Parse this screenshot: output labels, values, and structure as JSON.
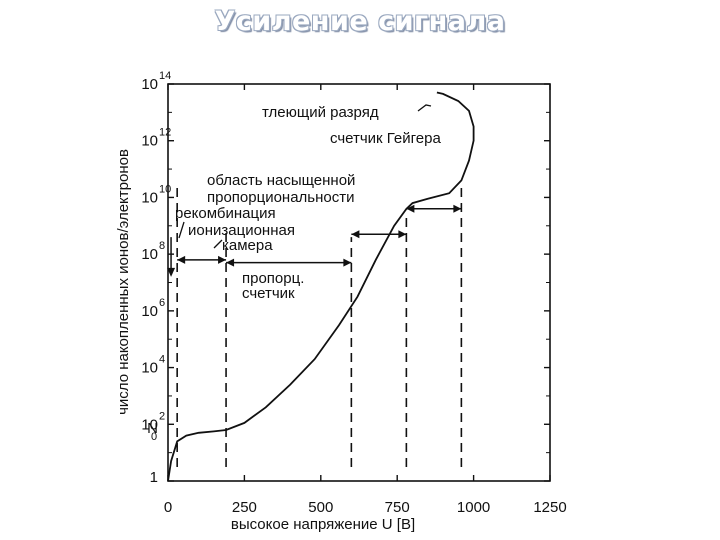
{
  "slide": {
    "title": "Усиление сигнала"
  },
  "chart_data": {
    "type": "line",
    "title": "",
    "xlabel": "высокое напряжение U [В]",
    "ylabel": "число накопленных ионов/электронов",
    "x_ticks": [
      "0",
      "250",
      "500",
      "750",
      "1000",
      "1250"
    ],
    "y_ticks": [
      {
        "base": "1",
        "exp": ""
      },
      {
        "base": "N",
        "sub": "0"
      },
      {
        "base": "10",
        "exp": "2"
      },
      {
        "base": "10",
        "exp": "4"
      },
      {
        "base": "10",
        "exp": "6"
      },
      {
        "base": "10",
        "exp": "8"
      },
      {
        "base": "10",
        "exp": "10"
      },
      {
        "base": "10",
        "exp": "12"
      },
      {
        "base": "10",
        "exp": "14"
      }
    ],
    "xlim": [
      0,
      1250
    ],
    "ylim_log10": [
      0,
      14
    ],
    "y_scale": "log",
    "series": [
      {
        "x": [
          0,
          10,
          30,
          60,
          100,
          150,
          190,
          250,
          320,
          400,
          480,
          560,
          620,
          680,
          740,
          780,
          800,
          850,
          920,
          960,
          985,
          1000,
          1000,
          985,
          950,
          900,
          880
        ],
        "y": [
          0,
          0.7,
          1.4,
          1.6,
          1.7,
          1.75,
          1.8,
          2.05,
          2.6,
          3.4,
          4.3,
          5.5,
          6.5,
          7.8,
          9.0,
          9.6,
          9.8,
          9.95,
          10.15,
          10.6,
          11.3,
          12.0,
          12.5,
          13.05,
          13.4,
          13.65,
          13.7
        ]
      }
    ],
    "boundaries_x": [
      30,
      190,
      600,
      780,
      960
    ],
    "annotations": [
      {
        "id": "glow",
        "text": "тлеющий разряд"
      },
      {
        "id": "geiger",
        "text": "счетчик Гейгера"
      },
      {
        "id": "sat1",
        "text": "область насыщенной"
      },
      {
        "id": "sat2",
        "text": "пропорциональности"
      },
      {
        "id": "rec",
        "text": "рекомбинация"
      },
      {
        "id": "ion1",
        "text": "ионизационная"
      },
      {
        "id": "ion2",
        "text": "камера"
      },
      {
        "id": "prop1",
        "text": "пропорц."
      },
      {
        "id": "prop2",
        "text": "счетчик"
      }
    ]
  }
}
